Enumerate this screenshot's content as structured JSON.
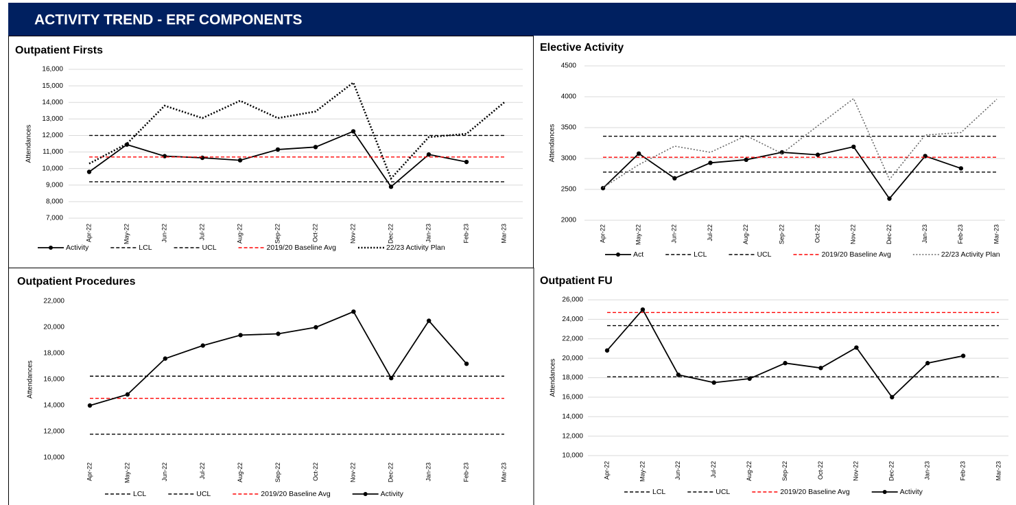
{
  "title": "ACTIVITY TREND - ERF COMPONENTS",
  "chart_data": [
    {
      "type": "line",
      "title": "Outpatient Firsts",
      "y_label": "Attendances",
      "categories": [
        "Apr-22",
        "May-22",
        "Jun-22",
        "Jul-22",
        "Aug-22",
        "Sep-22",
        "Oct-22",
        "Nov-22",
        "Dec-22",
        "Jan-23",
        "Feb-23",
        "Mar-23"
      ],
      "ylim": [
        7000,
        16000
      ],
      "yticks": [
        {
          "value": 7000,
          "label": "7,000"
        },
        {
          "value": 8000,
          "label": "8,000"
        },
        {
          "value": 9000,
          "label": "9,000"
        },
        {
          "value": 10000,
          "label": "10,000"
        },
        {
          "value": 11000,
          "label": "11,000"
        },
        {
          "value": 12000,
          "label": "12,000"
        },
        {
          "value": 13000,
          "label": "13,000"
        },
        {
          "value": 14000,
          "label": "14,000"
        },
        {
          "value": 15000,
          "label": "15,000"
        },
        {
          "value": 16000,
          "label": "16,000"
        }
      ],
      "grid": true,
      "series": [
        {
          "name": "Activity",
          "color": "#000000",
          "style": "solid",
          "marker": true,
          "values": [
            9800,
            11450,
            10750,
            10650,
            10500,
            11150,
            11300,
            12250,
            8900,
            10850,
            10400,
            null
          ]
        },
        {
          "name": "LCL",
          "color": "#000000",
          "style": "dashed",
          "values": [
            9200,
            9200,
            9200,
            9200,
            9200,
            9200,
            9200,
            9200,
            9200,
            9200,
            9200,
            9200
          ]
        },
        {
          "name": "UCL",
          "color": "#000000",
          "style": "dashed",
          "values": [
            12000,
            12000,
            12000,
            12000,
            12000,
            12000,
            12000,
            12000,
            12000,
            12000,
            12000,
            12000
          ]
        },
        {
          "name": "2019/20 Baseline Avg",
          "color": "#ff0000",
          "style": "dashed",
          "values": [
            10700,
            10700,
            10700,
            10700,
            10700,
            10700,
            10700,
            10700,
            10700,
            10700,
            10700,
            10700
          ]
        },
        {
          "name": "22/23 Activity Plan",
          "color": "#000000",
          "style": "dotted",
          "values": [
            10300,
            11500,
            13800,
            13050,
            14100,
            13050,
            13450,
            15200,
            9400,
            11900,
            12100,
            14000
          ]
        }
      ]
    },
    {
      "type": "line",
      "title": "Elective Activity",
      "y_label": "Attendances",
      "categories": [
        "Apr-22",
        "May-22",
        "Jun-22",
        "Jul-22",
        "Aug-22",
        "Sep-22",
        "Oct-22",
        "Nov-22",
        "Dec-22",
        "Jan-23",
        "Feb-23",
        "Mar-23"
      ],
      "ylim": [
        2000,
        4500
      ],
      "yticks": [
        2000,
        2500,
        3000,
        3500,
        4000,
        4500
      ],
      "grid": true,
      "series": [
        {
          "name": "Act",
          "color": "#000000",
          "style": "solid",
          "marker": true,
          "values": [
            2520,
            3080,
            2680,
            2930,
            2980,
            3100,
            3060,
            3190,
            2350,
            3040,
            2840,
            null
          ]
        },
        {
          "name": "LCL",
          "color": "#000000",
          "style": "dashed",
          "values": [
            2780,
            2780,
            2780,
            2780,
            2780,
            2780,
            2780,
            2780,
            2780,
            2780,
            2780,
            2780
          ]
        },
        {
          "name": "UCL",
          "color": "#000000",
          "style": "dashed",
          "values": [
            3360,
            3360,
            3360,
            3360,
            3360,
            3360,
            3360,
            3360,
            3360,
            3360,
            3360,
            3360
          ]
        },
        {
          "name": "2019/20 Baseline Avg",
          "color": "#ff0000",
          "style": "dashed",
          "values": [
            3020,
            3020,
            3020,
            3020,
            3020,
            3020,
            3020,
            3020,
            3020,
            3020,
            3020,
            3020
          ]
        },
        {
          "name": "22/23 Activity Plan",
          "color": "#666666",
          "style": "dotted",
          "values": [
            2530,
            2900,
            3200,
            3100,
            3370,
            3080,
            3530,
            3970,
            2660,
            3380,
            3420,
            3960
          ]
        }
      ]
    },
    {
      "type": "line",
      "title": "Outpatient Procedures",
      "y_label": "Attendances",
      "categories": [
        "Apr-22",
        "May-22",
        "Jun-22",
        "Jul-22",
        "Aug-22",
        "Sep-22",
        "Oct-22",
        "Nov-22",
        "Dec-22",
        "Jan-23",
        "Feb-23",
        "Mar-23"
      ],
      "ylim": [
        10000,
        22000
      ],
      "yticks": [
        {
          "value": 10000,
          "label": "10,000"
        },
        {
          "value": 12000,
          "label": "12,000"
        },
        {
          "value": 14000,
          "label": "14,000"
        },
        {
          "value": 16000,
          "label": "16,000"
        },
        {
          "value": 18000,
          "label": "18,000"
        },
        {
          "value": 20000,
          "label": "20,000"
        },
        {
          "value": 22000,
          "label": "22,000"
        }
      ],
      "grid": false,
      "series": [
        {
          "name": "LCL",
          "color": "#000000",
          "style": "dashed",
          "values": [
            11800,
            11800,
            11800,
            11800,
            11800,
            11800,
            11800,
            11800,
            11800,
            11800,
            11800,
            11800
          ]
        },
        {
          "name": "UCL",
          "color": "#000000",
          "style": "dashed",
          "values": [
            16250,
            16250,
            16250,
            16250,
            16250,
            16250,
            16250,
            16250,
            16250,
            16250,
            16250,
            16250
          ]
        },
        {
          "name": "2019/20 Baseline Avg",
          "color": "#ff0000",
          "style": "dashed",
          "values": [
            14550,
            14550,
            14550,
            14550,
            14550,
            14550,
            14550,
            14550,
            14550,
            14550,
            14550,
            14550
          ]
        },
        {
          "name": "Activity",
          "color": "#000000",
          "style": "solid",
          "marker": true,
          "values": [
            14000,
            14850,
            17600,
            18600,
            19400,
            19500,
            20000,
            21200,
            16100,
            20500,
            17200,
            null
          ]
        }
      ]
    },
    {
      "type": "line",
      "title": "Outpatient FU",
      "y_label": "Attendances",
      "categories": [
        "Apr-22",
        "May-22",
        "Jun-22",
        "Jul-22",
        "Aug-22",
        "Sep-22",
        "Oct-22",
        "Nov-22",
        "Dec-22",
        "Jan-23",
        "Feb-23",
        "Mar-23"
      ],
      "ylim": [
        10000,
        26000
      ],
      "yticks": [
        {
          "value": 10000,
          "label": "10,000"
        },
        {
          "value": 12000,
          "label": "12,000"
        },
        {
          "value": 14000,
          "label": "14,000"
        },
        {
          "value": 16000,
          "label": "16,000"
        },
        {
          "value": 18000,
          "label": "18,000"
        },
        {
          "value": 20000,
          "label": "20,000"
        },
        {
          "value": 22000,
          "label": "22,000"
        },
        {
          "value": 24000,
          "label": "24,000"
        },
        {
          "value": 26000,
          "label": "26,000"
        }
      ],
      "grid": true,
      "series": [
        {
          "name": "LCL",
          "color": "#000000",
          "style": "dashed",
          "values": [
            18100,
            18100,
            18100,
            18100,
            18100,
            18100,
            18100,
            18100,
            18100,
            18100,
            18100,
            18100
          ]
        },
        {
          "name": "UCL",
          "color": "#000000",
          "style": "dashed",
          "values": [
            23350,
            23350,
            23350,
            23350,
            23350,
            23350,
            23350,
            23350,
            23350,
            23350,
            23350,
            23350
          ]
        },
        {
          "name": "2019/20 Baseline Avg",
          "color": "#ff0000",
          "style": "dashed",
          "values": [
            24700,
            24700,
            24700,
            24700,
            24700,
            24700,
            24700,
            24700,
            24700,
            24700,
            24700,
            24700
          ]
        },
        {
          "name": "Activity",
          "color": "#000000",
          "style": "solid",
          "marker": true,
          "values": [
            20800,
            25000,
            18300,
            17500,
            17900,
            19500,
            19000,
            21100,
            16000,
            19500,
            20250,
            null
          ]
        }
      ]
    }
  ]
}
